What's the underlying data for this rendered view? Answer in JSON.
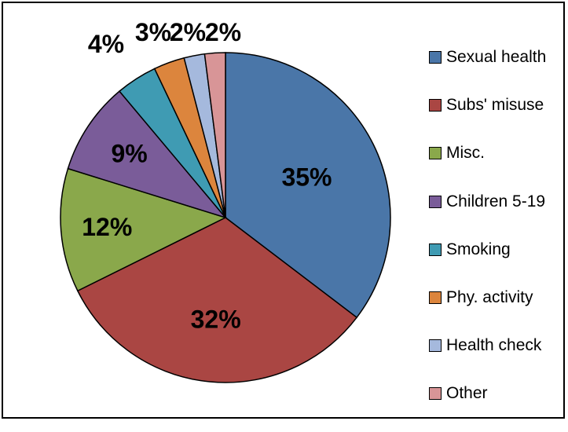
{
  "chart_data": {
    "type": "pie",
    "title": "",
    "start": "12 o'clock",
    "direction": "clockwise",
    "legend_position": "right",
    "slices": [
      {
        "label": "Sexual health",
        "value": 35,
        "display": "35%",
        "color": "#4a76a8"
      },
      {
        "label": "Subs' misuse",
        "value": 32,
        "display": "32%",
        "color": "#aa4643"
      },
      {
        "label": "Misc.",
        "value": 12,
        "display": "12%",
        "color": "#8aa84b"
      },
      {
        "label": "Children 5-19",
        "value": 9,
        "display": "9%",
        "color": "#7a5c99"
      },
      {
        "label": "Smoking",
        "value": 4,
        "display": "4%",
        "color": "#3f9bb3"
      },
      {
        "label": "Phy. activity",
        "value": 3,
        "display": "3%",
        "color": "#dc853d"
      },
      {
        "label": "Health check",
        "value": 2,
        "display": "2%",
        "color": "#a5b9dd"
      },
      {
        "label": "Other",
        "value": 2,
        "display": "2%",
        "color": "#d89597"
      }
    ]
  }
}
